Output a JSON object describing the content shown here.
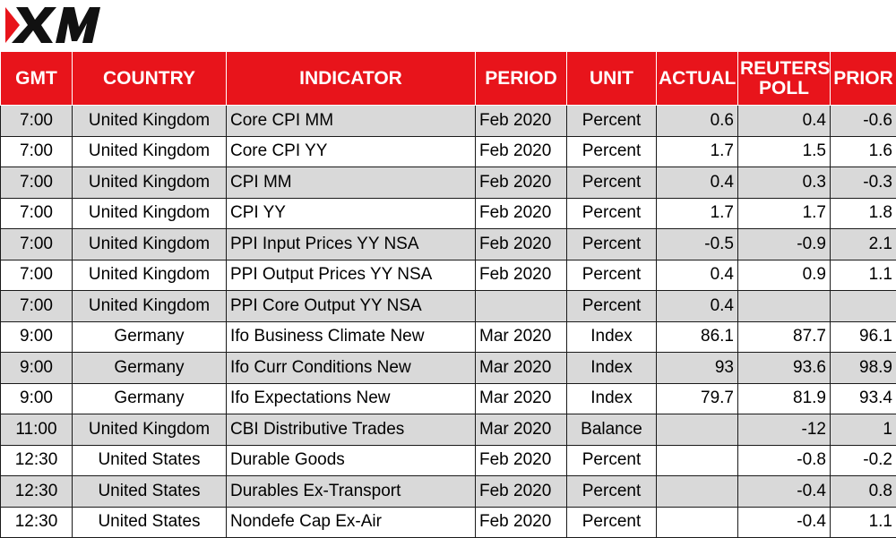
{
  "brand": {
    "logo_text": "XM",
    "accent": "#e8141b",
    "text_color": "#111111"
  },
  "table": {
    "headers": {
      "gmt": "GMT",
      "country": "COUNTRY",
      "indicator": "INDICATOR",
      "period": "PERIOD",
      "unit": "UNIT",
      "actual": "ACTUAL",
      "poll_line1": "REUTERS",
      "poll_line2": "POLL",
      "prior": "PRIOR"
    },
    "rows": [
      {
        "gmt": "7:00",
        "country": "United Kingdom",
        "indicator": "Core CPI MM",
        "period": "Feb 2020",
        "unit": "Percent",
        "actual": "0.6",
        "poll": "0.4",
        "prior": "-0.6"
      },
      {
        "gmt": "7:00",
        "country": "United Kingdom",
        "indicator": "Core CPI YY",
        "period": "Feb 2020",
        "unit": "Percent",
        "actual": "1.7",
        "poll": "1.5",
        "prior": "1.6"
      },
      {
        "gmt": "7:00",
        "country": "United Kingdom",
        "indicator": "CPI MM",
        "period": "Feb 2020",
        "unit": "Percent",
        "actual": "0.4",
        "poll": "0.3",
        "prior": "-0.3"
      },
      {
        "gmt": "7:00",
        "country": "United Kingdom",
        "indicator": "CPI YY",
        "period": "Feb 2020",
        "unit": "Percent",
        "actual": "1.7",
        "poll": "1.7",
        "prior": "1.8"
      },
      {
        "gmt": "7:00",
        "country": "United Kingdom",
        "indicator": "PPI Input Prices YY NSA",
        "period": "Feb 2020",
        "unit": "Percent",
        "actual": "-0.5",
        "poll": "-0.9",
        "prior": "2.1"
      },
      {
        "gmt": "7:00",
        "country": "United Kingdom",
        "indicator": "PPI Output Prices YY NSA",
        "period": "Feb 2020",
        "unit": "Percent",
        "actual": "0.4",
        "poll": "0.9",
        "prior": "1.1"
      },
      {
        "gmt": "7:00",
        "country": "United Kingdom",
        "indicator": "PPI Core Output YY NSA",
        "period": "",
        "unit": "Percent",
        "actual": "0.4",
        "poll": "",
        "prior": ""
      },
      {
        "gmt": "9:00",
        "country": "Germany",
        "indicator": "Ifo Business Climate New",
        "period": "Mar 2020",
        "unit": "Index",
        "actual": "86.1",
        "poll": "87.7",
        "prior": "96.1"
      },
      {
        "gmt": "9:00",
        "country": "Germany",
        "indicator": "Ifo Curr Conditions New",
        "period": "Mar 2020",
        "unit": "Index",
        "actual": "93",
        "poll": "93.6",
        "prior": "98.9"
      },
      {
        "gmt": "9:00",
        "country": "Germany",
        "indicator": "Ifo Expectations New",
        "period": "Mar 2020",
        "unit": "Index",
        "actual": "79.7",
        "poll": "81.9",
        "prior": "93.4"
      },
      {
        "gmt": "11:00",
        "country": "United Kingdom",
        "indicator": "CBI Distributive Trades",
        "period": "Mar 2020",
        "unit": "Balance",
        "actual": "",
        "poll": "-12",
        "prior": "1"
      },
      {
        "gmt": "12:30",
        "country": "United States",
        "indicator": "Durable Goods",
        "period": "Feb 2020",
        "unit": "Percent",
        "actual": "",
        "poll": "-0.8",
        "prior": "-0.2"
      },
      {
        "gmt": "12:30",
        "country": "United States",
        "indicator": "Durables Ex-Transport",
        "period": "Feb 2020",
        "unit": "Percent",
        "actual": "",
        "poll": "-0.4",
        "prior": "0.8"
      },
      {
        "gmt": "12:30",
        "country": "United States",
        "indicator": "Nondefe Cap Ex-Air",
        "period": "Feb 2020",
        "unit": "Percent",
        "actual": "",
        "poll": "-0.4",
        "prior": "1.1"
      }
    ]
  }
}
